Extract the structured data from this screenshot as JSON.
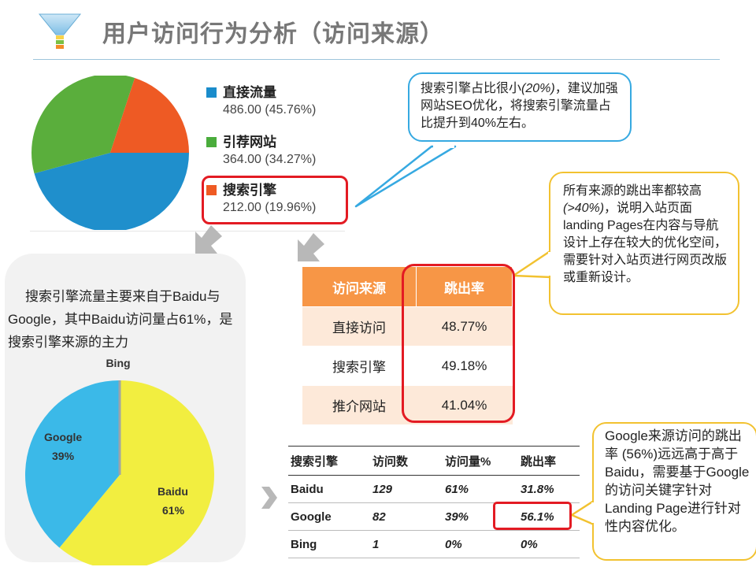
{
  "page": {
    "title": "用户访问行为分析（访问来源）"
  },
  "colors": {
    "blue": "#1f8fcc",
    "green": "#5aae3c",
    "orange": "#ee5a24",
    "yellow": "#f2ee40",
    "cyan": "#3bb9e8",
    "accent_red": "#e31b23",
    "table_header": "#f79646"
  },
  "source_legend": {
    "items": [
      {
        "name": "直接流量",
        "value": "486.00 (45.76%)",
        "color": "#1a8ccb"
      },
      {
        "name": "引荐网站",
        "value": "364.00 (34.27%)",
        "color": "#4aac3c"
      },
      {
        "name": "搜索引擎",
        "value": "212.00 (19.96%)",
        "color": "#ef5a23"
      }
    ]
  },
  "chart_data": [
    {
      "type": "pie",
      "title": "",
      "categories": [
        "直接流量",
        "引荐网站",
        "搜索引擎"
      ],
      "values": [
        486.0,
        364.0,
        212.0
      ],
      "percent": [
        45.76,
        34.27,
        19.96
      ],
      "colors": [
        "#1f8fcc",
        "#5aae3c",
        "#ee5a24"
      ]
    },
    {
      "type": "pie",
      "title": "",
      "categories": [
        "Baidu",
        "Google",
        "Bing"
      ],
      "values": [
        61,
        39,
        0
      ],
      "labels": [
        "Baidu\n61%",
        "Google\n39%",
        "Bing"
      ],
      "colors": [
        "#f2ee40",
        "#3bb9e8",
        "#9fa4a6"
      ]
    }
  ],
  "pie2_labels": {
    "baidu_name": "Baidu",
    "baidu_pct": "61%",
    "google_name": "Google",
    "google_pct": "39%",
    "bing_name": "Bing"
  },
  "callouts": {
    "search": {
      "pre": "搜索引擎占比很小",
      "em": "(20%)",
      "post": "，建议加强网站SEO优化，将搜索引擎流量占比提升到40%左右。"
    },
    "bounce": {
      "pre": "所有来源的跳出率都较高",
      "em": "(>40%)",
      "post": "，说明入站页面landing Pages在内容与导航设计上存在较大的优化空间，需要针对入站页进行网页改版或重新设计。"
    },
    "google": {
      "text": "Google来源访问的跳出率 (56%)远远高于高于Baidu，需要基于Google的访问关键字针对Landing Page进行针对性内容优化。"
    }
  },
  "bubble": {
    "text": "搜索引擎流量主要来自于Baidu与Google，其中Baidu访问量占61%，是搜索引擎来源的主力"
  },
  "bounce_table": {
    "headers": [
      "访问来源",
      "跳出率"
    ],
    "rows": [
      [
        "直接访问",
        "48.77%"
      ],
      [
        "搜索引擎",
        "49.18%"
      ],
      [
        "推介网站",
        "41.04%"
      ]
    ]
  },
  "search_table": {
    "headers": [
      "搜索引擎",
      "访问数",
      "访问量%",
      "跳出率"
    ],
    "rows": [
      [
        "Baidu",
        "129",
        "61%",
        "31.8%"
      ],
      [
        "Google",
        "82",
        "39%",
        "56.1%"
      ],
      [
        "Bing",
        "1",
        "0%",
        "0%"
      ]
    ]
  }
}
